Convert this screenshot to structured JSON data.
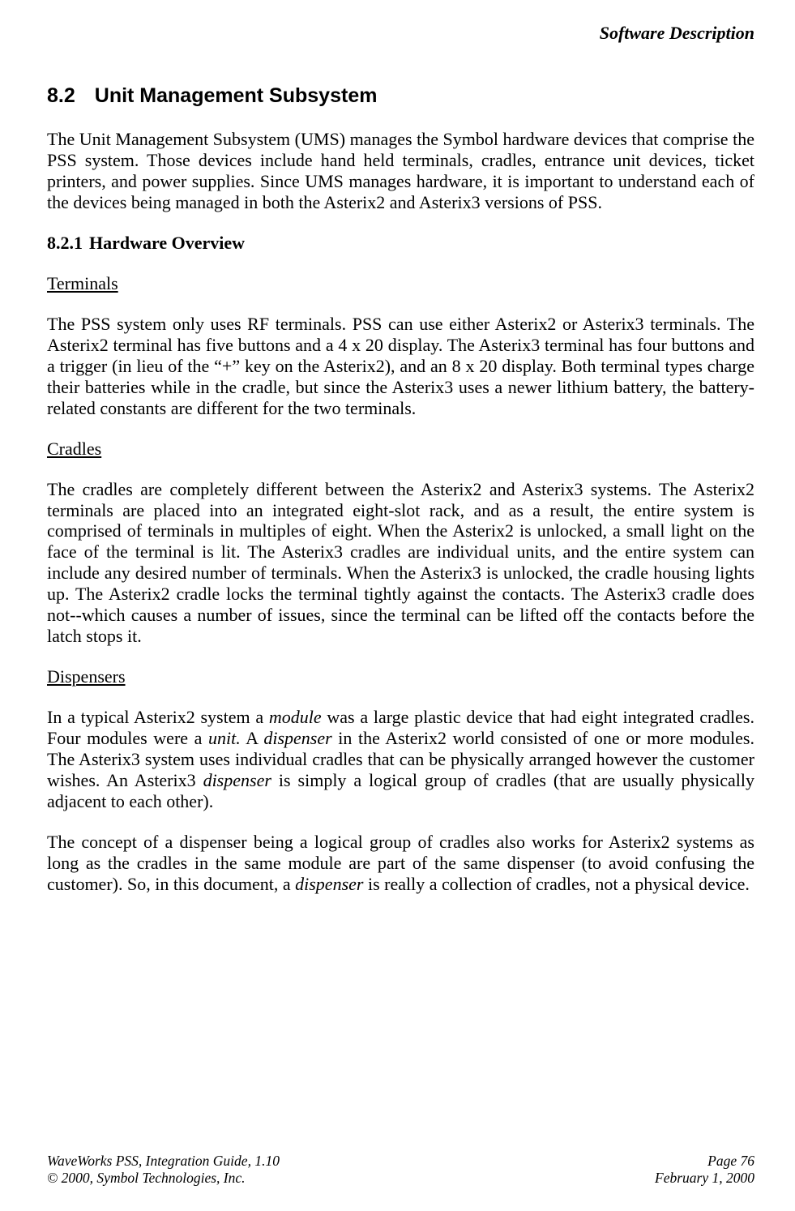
{
  "header": {
    "title": "Software Description"
  },
  "section": {
    "number": "8.2",
    "title": "Unit Management Subsystem",
    "intro": "The Unit Management Subsystem (UMS) manages the Symbol hardware devices that comprise the PSS system.  Those devices include hand held terminals, cradles, entrance unit devices, ticket printers, and power supplies.  Since UMS manages hardware, it is important to understand each of the devices being managed in both the Asterix2 and Asterix3 versions of PSS."
  },
  "subsection": {
    "number": "8.2.1",
    "title": "Hardware Overview"
  },
  "terminals": {
    "heading": "Terminals",
    "body": "The PSS system only uses RF terminals.  PSS can use either Asterix2 or Asterix3 terminals.  The Asterix2 terminal has five buttons and a 4 x 20 display.  The Asterix3 terminal has four buttons and a trigger (in lieu of the “+” key on the Asterix2), and an 8 x 20 display.  Both terminal types charge their batteries while in the cradle, but since the Asterix3 uses a newer lithium battery, the battery-related constants are different for the two terminals."
  },
  "cradles": {
    "heading": "Cradles",
    "body": "The cradles are completely different between the Asterix2 and Asterix3 systems.  The Asterix2 terminals are placed into an integrated eight-slot rack, and as a result, the entire system is comprised of terminals in multiples of eight.  When the Asterix2 is unlocked, a small light on the face of the terminal is lit.  The Asterix3 cradles are individual units, and the entire system can include any desired number of terminals.  When the Asterix3 is unlocked, the cradle housing lights up.  The Asterix2 cradle locks the terminal tightly against the contacts.  The Asterix3 cradle does not--which causes a number of issues, since the terminal can be lifted off the contacts before the latch stops it."
  },
  "dispensers": {
    "heading": "Dispensers",
    "p1_pre": "In a typical Asterix2 system a ",
    "p1_i1": "module",
    "p1_mid1": " was a large plastic device that had eight integrated cradles. Four modules were a ",
    "p1_i2": "unit.",
    "p1_mid2": "  A ",
    "p1_i3": "dispenser",
    "p1_mid3": " in the Asterix2 world consisted of one or more modules. The Asterix3 system uses individual cradles that can be physically arranged however the customer wishes.  An Asterix3 ",
    "p1_i4": "dispenser",
    "p1_post": " is simply a logical group of cradles (that are usually physically adjacent to each other).",
    "p2_pre": "The concept of a dispenser being a logical group of cradles also works for Asterix2 systems as long as the cradles in the same module are part of the same dispenser (to avoid confusing the customer).  So, in this document, a ",
    "p2_i1": "dispenser",
    "p2_post": " is really a collection of cradles, not a physical device."
  },
  "footer": {
    "doc_title": "WaveWorks PSS, Integration Guide, 1.10",
    "copyright": "© 2000, Symbol Technologies, Inc.",
    "page": "Page 76",
    "date": "February 1, 2000"
  }
}
